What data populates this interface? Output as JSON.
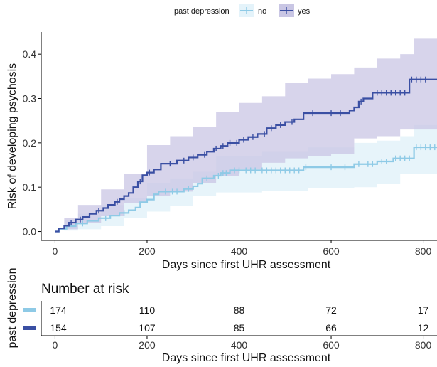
{
  "chart_data": {
    "type": "line",
    "subtype": "kaplan-meier cumulative incidence",
    "legend": {
      "title": "past depression",
      "position": "top",
      "entries": [
        {
          "key": "no",
          "label": "no",
          "color": "#8ecae6",
          "ci_color": "#e4f3fa"
        },
        {
          "key": "yes",
          "label": "yes",
          "color": "#3a4fa3",
          "ci_color": "#c9c6e4"
        }
      ]
    },
    "xlabel": "Days since first UHR assessment",
    "ylabel": "Risk of developing psychosis",
    "xlim": [
      -30,
      830
    ],
    "ylim": [
      -0.02,
      0.45
    ],
    "xticks": [
      0,
      200,
      400,
      600,
      800
    ],
    "yticks": [
      0.0,
      0.1,
      0.2,
      0.3,
      0.4
    ],
    "xtick_labels": [
      "0",
      "200",
      "400",
      "600",
      "800"
    ],
    "ytick_labels": [
      "0.0",
      "0.1",
      "0.2",
      "0.3",
      "0.4"
    ],
    "series": [
      {
        "name": "no",
        "color": "#8ecae6",
        "steps": [
          [
            0,
            0
          ],
          [
            10,
            0.006
          ],
          [
            25,
            0.012
          ],
          [
            45,
            0.018
          ],
          [
            70,
            0.024
          ],
          [
            95,
            0.03
          ],
          [
            120,
            0.036
          ],
          [
            140,
            0.042
          ],
          [
            160,
            0.048
          ],
          [
            175,
            0.054
          ],
          [
            185,
            0.066
          ],
          [
            200,
            0.072
          ],
          [
            215,
            0.084
          ],
          [
            225,
            0.09
          ],
          [
            280,
            0.096
          ],
          [
            300,
            0.102
          ],
          [
            310,
            0.108
          ],
          [
            320,
            0.12
          ],
          [
            345,
            0.126
          ],
          [
            360,
            0.132
          ],
          [
            380,
            0.138
          ],
          [
            540,
            0.145
          ],
          [
            650,
            0.152
          ],
          [
            700,
            0.158
          ],
          [
            735,
            0.165
          ],
          [
            780,
            0.19
          ],
          [
            830,
            0.19
          ]
        ],
        "ci_lower": [
          [
            0,
            0
          ],
          [
            20,
            0
          ],
          [
            50,
            0.002
          ],
          [
            100,
            0.005
          ],
          [
            150,
            0.012
          ],
          [
            200,
            0.03
          ],
          [
            250,
            0.045
          ],
          [
            300,
            0.058
          ],
          [
            350,
            0.08
          ],
          [
            450,
            0.088
          ],
          [
            550,
            0.092
          ],
          [
            650,
            0.098
          ],
          [
            700,
            0.1
          ],
          [
            750,
            0.108
          ],
          [
            780,
            0.13
          ],
          [
            830,
            0.13
          ]
        ],
        "ci_upper": [
          [
            0,
            0
          ],
          [
            20,
            0.025
          ],
          [
            50,
            0.04
          ],
          [
            100,
            0.06
          ],
          [
            150,
            0.075
          ],
          [
            200,
            0.11
          ],
          [
            250,
            0.12
          ],
          [
            300,
            0.135
          ],
          [
            350,
            0.17
          ],
          [
            450,
            0.18
          ],
          [
            550,
            0.19
          ],
          [
            650,
            0.2
          ],
          [
            700,
            0.205
          ],
          [
            750,
            0.215
          ],
          [
            780,
            0.24
          ],
          [
            830,
            0.24
          ]
        ],
        "censor_marks": [
          [
            60,
            0.018
          ],
          [
            110,
            0.03
          ],
          [
            150,
            0.042
          ],
          [
            240,
            0.09
          ],
          [
            255,
            0.09
          ],
          [
            265,
            0.09
          ],
          [
            290,
            0.096
          ],
          [
            330,
            0.12
          ],
          [
            355,
            0.126
          ],
          [
            365,
            0.132
          ],
          [
            372,
            0.132
          ],
          [
            390,
            0.138
          ],
          [
            400,
            0.138
          ],
          [
            415,
            0.138
          ],
          [
            425,
            0.138
          ],
          [
            435,
            0.138
          ],
          [
            450,
            0.138
          ],
          [
            460,
            0.138
          ],
          [
            470,
            0.138
          ],
          [
            480,
            0.138
          ],
          [
            490,
            0.138
          ],
          [
            500,
            0.138
          ],
          [
            510,
            0.138
          ],
          [
            520,
            0.138
          ],
          [
            530,
            0.138
          ],
          [
            545,
            0.145
          ],
          [
            600,
            0.145
          ],
          [
            630,
            0.145
          ],
          [
            660,
            0.152
          ],
          [
            680,
            0.152
          ],
          [
            690,
            0.152
          ],
          [
            710,
            0.158
          ],
          [
            720,
            0.158
          ],
          [
            740,
            0.165
          ],
          [
            750,
            0.165
          ],
          [
            760,
            0.165
          ],
          [
            770,
            0.165
          ],
          [
            785,
            0.19
          ],
          [
            795,
            0.19
          ],
          [
            805,
            0.19
          ],
          [
            815,
            0.19
          ],
          [
            825,
            0.19
          ]
        ]
      },
      {
        "name": "yes",
        "color": "#3a4fa3",
        "steps": [
          [
            0,
            0
          ],
          [
            8,
            0.007
          ],
          [
            20,
            0.013
          ],
          [
            30,
            0.02
          ],
          [
            45,
            0.027
          ],
          [
            60,
            0.033
          ],
          [
            75,
            0.04
          ],
          [
            90,
            0.047
          ],
          [
            105,
            0.053
          ],
          [
            115,
            0.06
          ],
          [
            130,
            0.067
          ],
          [
            140,
            0.073
          ],
          [
            150,
            0.08
          ],
          [
            160,
            0.087
          ],
          [
            170,
            0.1
          ],
          [
            180,
            0.113
          ],
          [
            190,
            0.127
          ],
          [
            200,
            0.133
          ],
          [
            215,
            0.14
          ],
          [
            230,
            0.153
          ],
          [
            265,
            0.16
          ],
          [
            290,
            0.167
          ],
          [
            310,
            0.173
          ],
          [
            330,
            0.18
          ],
          [
            345,
            0.187
          ],
          [
            360,
            0.193
          ],
          [
            375,
            0.2
          ],
          [
            400,
            0.207
          ],
          [
            420,
            0.213
          ],
          [
            440,
            0.22
          ],
          [
            460,
            0.233
          ],
          [
            480,
            0.24
          ],
          [
            500,
            0.247
          ],
          [
            520,
            0.253
          ],
          [
            540,
            0.267
          ],
          [
            640,
            0.273
          ],
          [
            650,
            0.28
          ],
          [
            660,
            0.293
          ],
          [
            670,
            0.3
          ],
          [
            690,
            0.313
          ],
          [
            770,
            0.343
          ],
          [
            830,
            0.343
          ]
        ],
        "ci_lower": [
          [
            0,
            0
          ],
          [
            20,
            0
          ],
          [
            50,
            0.005
          ],
          [
            100,
            0.02
          ],
          [
            150,
            0.035
          ],
          [
            200,
            0.065
          ],
          [
            250,
            0.08
          ],
          [
            300,
            0.09
          ],
          [
            350,
            0.11
          ],
          [
            400,
            0.125
          ],
          [
            450,
            0.14
          ],
          [
            500,
            0.155
          ],
          [
            550,
            0.165
          ],
          [
            600,
            0.17
          ],
          [
            650,
            0.175
          ],
          [
            700,
            0.21
          ],
          [
            750,
            0.215
          ],
          [
            780,
            0.23
          ],
          [
            830,
            0.23
          ]
        ],
        "ci_upper": [
          [
            0,
            0
          ],
          [
            20,
            0.03
          ],
          [
            50,
            0.06
          ],
          [
            100,
            0.095
          ],
          [
            150,
            0.13
          ],
          [
            200,
            0.195
          ],
          [
            250,
            0.215
          ],
          [
            300,
            0.235
          ],
          [
            350,
            0.27
          ],
          [
            400,
            0.29
          ],
          [
            450,
            0.305
          ],
          [
            500,
            0.335
          ],
          [
            550,
            0.345
          ],
          [
            600,
            0.355
          ],
          [
            650,
            0.37
          ],
          [
            700,
            0.39
          ],
          [
            750,
            0.4
          ],
          [
            780,
            0.435
          ],
          [
            830,
            0.435
          ]
        ],
        "censor_marks": [
          [
            35,
            0.02
          ],
          [
            55,
            0.027
          ],
          [
            95,
            0.047
          ],
          [
            135,
            0.067
          ],
          [
            185,
            0.113
          ],
          [
            205,
            0.133
          ],
          [
            250,
            0.153
          ],
          [
            280,
            0.16
          ],
          [
            300,
            0.167
          ],
          [
            325,
            0.173
          ],
          [
            350,
            0.187
          ],
          [
            365,
            0.193
          ],
          [
            380,
            0.2
          ],
          [
            395,
            0.2
          ],
          [
            410,
            0.207
          ],
          [
            430,
            0.213
          ],
          [
            455,
            0.22
          ],
          [
            470,
            0.233
          ],
          [
            490,
            0.24
          ],
          [
            515,
            0.247
          ],
          [
            560,
            0.267
          ],
          [
            600,
            0.267
          ],
          [
            620,
            0.267
          ],
          [
            665,
            0.293
          ],
          [
            700,
            0.313
          ],
          [
            710,
            0.313
          ],
          [
            720,
            0.313
          ],
          [
            730,
            0.313
          ],
          [
            740,
            0.313
          ],
          [
            750,
            0.313
          ],
          [
            760,
            0.313
          ],
          [
            775,
            0.343
          ],
          [
            785,
            0.343
          ],
          [
            795,
            0.343
          ],
          [
            805,
            0.343
          ]
        ]
      }
    ],
    "risk_table": {
      "title": "Number at risk",
      "ylabel": "past depression",
      "xlabel": "Days since first UHR assessment",
      "xticks": [
        0,
        200,
        400,
        600,
        800
      ],
      "xtick_labels": [
        "0",
        "200",
        "400",
        "600",
        "800"
      ],
      "rows": [
        {
          "group": "no",
          "color": "#8ecae6",
          "values": [
            "174",
            "110",
            "88",
            "72",
            "17"
          ]
        },
        {
          "group": "yes",
          "color": "#3a4fa3",
          "values": [
            "154",
            "107",
            "85",
            "66",
            "12"
          ]
        }
      ]
    }
  }
}
